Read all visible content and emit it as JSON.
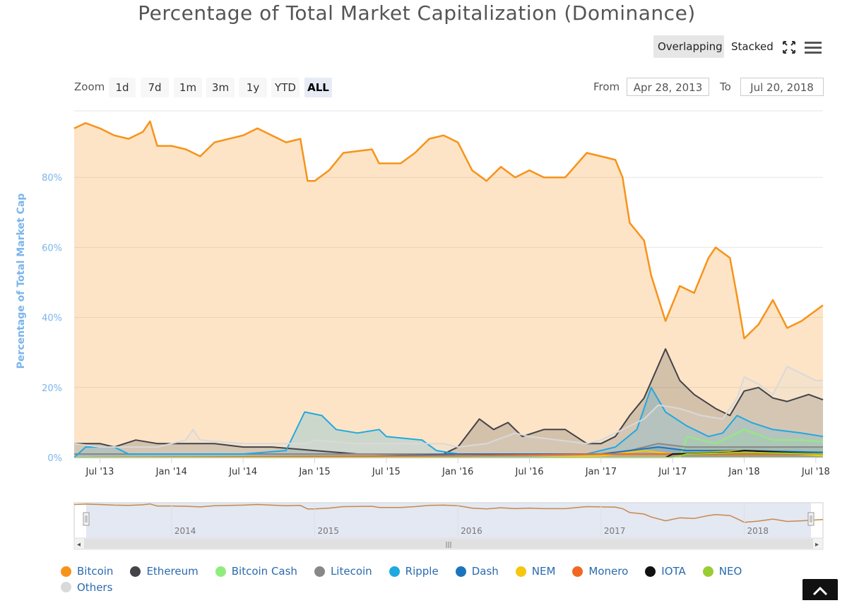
{
  "title": "Percentage of Total Market Capitalization (Dominance)",
  "modes": {
    "overlapping": "Overlapping",
    "stacked": "Stacked"
  },
  "zoom": {
    "label": "Zoom",
    "buttons": [
      "1d",
      "7d",
      "1m",
      "3m",
      "1y",
      "YTD",
      "ALL"
    ],
    "active": "ALL"
  },
  "range": {
    "from_label": "From",
    "from_value": "Apr 28, 2013",
    "to_label": "To",
    "to_value": "Jul 20, 2018"
  },
  "icons": {
    "fullscreen": "fullscreen-icon",
    "menu": "hamburger-menu-icon",
    "back_to_top": "chevron-up-icon"
  },
  "chart_data": {
    "type": "area",
    "title": "Percentage of Total Market Capitalization (Dominance)",
    "ylabel": "Percentage of Total Market Cap",
    "xlabel": "",
    "ylim": [
      0,
      100
    ],
    "xlim": [
      2013.32,
      2018.55
    ],
    "y_ticks": [
      0,
      20,
      40,
      60,
      80
    ],
    "y_tick_labels": [
      "0%",
      "20%",
      "40%",
      "60%",
      "80%"
    ],
    "x_ticks": [
      2013.5,
      2014.0,
      2014.5,
      2015.0,
      2015.5,
      2016.0,
      2016.5,
      2017.0,
      2017.5,
      2018.0,
      2018.5
    ],
    "x_tick_labels": [
      "Jul '13",
      "Jan '14",
      "Jul '14",
      "Jan '15",
      "Jul '15",
      "Jan '16",
      "Jul '16",
      "Jan '17",
      "Jul '17",
      "Jan '18",
      "Jul '18"
    ],
    "navigator_labels": [
      {
        "x": 2014.0,
        "label": "2014"
      },
      {
        "x": 2015.0,
        "label": "2015"
      },
      {
        "x": 2016.0,
        "label": "2016"
      },
      {
        "x": 2017.0,
        "label": "2017"
      },
      {
        "x": 2018.0,
        "label": "2018"
      }
    ],
    "series": [
      {
        "name": "Bitcoin",
        "color": "#f7931a",
        "points": [
          [
            2013.32,
            94
          ],
          [
            2013.4,
            95.5
          ],
          [
            2013.5,
            94
          ],
          [
            2013.6,
            92
          ],
          [
            2013.7,
            91
          ],
          [
            2013.8,
            93
          ],
          [
            2013.85,
            96
          ],
          [
            2013.9,
            89
          ],
          [
            2014.0,
            89
          ],
          [
            2014.1,
            88
          ],
          [
            2014.2,
            86
          ],
          [
            2014.3,
            90
          ],
          [
            2014.5,
            92
          ],
          [
            2014.6,
            94
          ],
          [
            2014.7,
            92
          ],
          [
            2014.8,
            90
          ],
          [
            2014.9,
            91
          ],
          [
            2014.95,
            79
          ],
          [
            2015.0,
            79
          ],
          [
            2015.1,
            82
          ],
          [
            2015.2,
            87
          ],
          [
            2015.4,
            88
          ],
          [
            2015.45,
            84
          ],
          [
            2015.6,
            84
          ],
          [
            2015.7,
            87
          ],
          [
            2015.8,
            91
          ],
          [
            2015.9,
            92
          ],
          [
            2016.0,
            90
          ],
          [
            2016.1,
            82
          ],
          [
            2016.2,
            79
          ],
          [
            2016.3,
            83
          ],
          [
            2016.4,
            80
          ],
          [
            2016.5,
            82
          ],
          [
            2016.6,
            80
          ],
          [
            2016.75,
            80
          ],
          [
            2016.9,
            87
          ],
          [
            2017.0,
            86
          ],
          [
            2017.1,
            85
          ],
          [
            2017.15,
            80
          ],
          [
            2017.2,
            67
          ],
          [
            2017.3,
            62
          ],
          [
            2017.35,
            52
          ],
          [
            2017.45,
            39
          ],
          [
            2017.55,
            49
          ],
          [
            2017.65,
            47
          ],
          [
            2017.75,
            57
          ],
          [
            2017.8,
            60
          ],
          [
            2017.9,
            57
          ],
          [
            2017.95,
            46
          ],
          [
            2018.0,
            34
          ],
          [
            2018.1,
            38
          ],
          [
            2018.2,
            45
          ],
          [
            2018.3,
            37
          ],
          [
            2018.4,
            39
          ],
          [
            2018.5,
            42
          ],
          [
            2018.55,
            43.5
          ]
        ]
      },
      {
        "name": "Ethereum",
        "color": "#434348",
        "points": [
          [
            2013.32,
            4
          ],
          [
            2013.5,
            4
          ],
          [
            2013.6,
            3
          ],
          [
            2013.75,
            5
          ],
          [
            2013.9,
            4
          ],
          [
            2014.1,
            4
          ],
          [
            2014.3,
            4
          ],
          [
            2014.5,
            3
          ],
          [
            2014.7,
            3
          ],
          [
            2015.0,
            2
          ],
          [
            2015.3,
            1
          ],
          [
            2015.6,
            1
          ],
          [
            2015.9,
            1
          ],
          [
            2016.0,
            3
          ],
          [
            2016.15,
            11
          ],
          [
            2016.25,
            8
          ],
          [
            2016.35,
            10
          ],
          [
            2016.45,
            6
          ],
          [
            2016.6,
            8
          ],
          [
            2016.75,
            8
          ],
          [
            2016.9,
            4
          ],
          [
            2017.0,
            4
          ],
          [
            2017.1,
            6
          ],
          [
            2017.2,
            12
          ],
          [
            2017.3,
            17
          ],
          [
            2017.45,
            31
          ],
          [
            2017.55,
            22
          ],
          [
            2017.65,
            18
          ],
          [
            2017.8,
            14
          ],
          [
            2017.9,
            12
          ],
          [
            2018.0,
            19
          ],
          [
            2018.1,
            20
          ],
          [
            2018.2,
            17
          ],
          [
            2018.3,
            16
          ],
          [
            2018.45,
            18
          ],
          [
            2018.55,
            16.5
          ]
        ]
      },
      {
        "name": "Bitcoin Cash",
        "color": "#90ed7d",
        "points": [
          [
            2017.55,
            0
          ],
          [
            2017.6,
            6
          ],
          [
            2017.7,
            5
          ],
          [
            2017.8,
            4
          ],
          [
            2017.9,
            6
          ],
          [
            2018.0,
            8
          ],
          [
            2018.2,
            5
          ],
          [
            2018.4,
            5
          ],
          [
            2018.55,
            4.5
          ]
        ]
      },
      {
        "name": "Litecoin",
        "color": "#888888",
        "points": [
          [
            2013.32,
            1
          ],
          [
            2014.0,
            1
          ],
          [
            2015.0,
            1
          ],
          [
            2016.0,
            1
          ],
          [
            2016.5,
            1
          ],
          [
            2017.0,
            1
          ],
          [
            2017.2,
            2
          ],
          [
            2017.4,
            4
          ],
          [
            2017.6,
            3
          ],
          [
            2017.8,
            3
          ],
          [
            2018.0,
            3
          ],
          [
            2018.2,
            3
          ],
          [
            2018.55,
            3
          ]
        ]
      },
      {
        "name": "Ripple",
        "color": "#1fa9e1",
        "points": [
          [
            2013.32,
            0
          ],
          [
            2013.4,
            3
          ],
          [
            2013.6,
            3
          ],
          [
            2013.7,
            1
          ],
          [
            2014.0,
            1
          ],
          [
            2014.5,
            1
          ],
          [
            2014.8,
            2
          ],
          [
            2014.93,
            13
          ],
          [
            2015.05,
            12
          ],
          [
            2015.15,
            8
          ],
          [
            2015.3,
            7
          ],
          [
            2015.45,
            8
          ],
          [
            2015.5,
            6
          ],
          [
            2015.75,
            5
          ],
          [
            2015.85,
            2
          ],
          [
            2016.0,
            1
          ],
          [
            2016.5,
            1
          ],
          [
            2016.9,
            1
          ],
          [
            2017.1,
            3
          ],
          [
            2017.25,
            8
          ],
          [
            2017.35,
            20
          ],
          [
            2017.45,
            13
          ],
          [
            2017.6,
            9
          ],
          [
            2017.75,
            6
          ],
          [
            2017.85,
            7
          ],
          [
            2017.95,
            12
          ],
          [
            2018.05,
            10
          ],
          [
            2018.2,
            8
          ],
          [
            2018.4,
            7
          ],
          [
            2018.55,
            6
          ]
        ]
      },
      {
        "name": "Dash",
        "color": "#1c75bc",
        "points": [
          [
            2013.32,
            0
          ],
          [
            2015.0,
            0
          ],
          [
            2016.0,
            1
          ],
          [
            2016.5,
            1
          ],
          [
            2017.0,
            1
          ],
          [
            2017.2,
            2
          ],
          [
            2017.4,
            3
          ],
          [
            2017.6,
            2
          ],
          [
            2018.0,
            2
          ],
          [
            2018.55,
            1.5
          ]
        ]
      },
      {
        "name": "NEM",
        "color": "#f5c710",
        "points": [
          [
            2013.32,
            0
          ],
          [
            2016.5,
            0
          ],
          [
            2017.0,
            0.5
          ],
          [
            2017.3,
            2
          ],
          [
            2017.5,
            1
          ],
          [
            2018.0,
            2
          ],
          [
            2018.55,
            0.5
          ]
        ]
      },
      {
        "name": "Monero",
        "color": "#f26822",
        "points": [
          [
            2013.32,
            0
          ],
          [
            2016.0,
            0.5
          ],
          [
            2017.0,
            1
          ],
          [
            2017.5,
            1
          ],
          [
            2018.0,
            1
          ],
          [
            2018.55,
            1
          ]
        ]
      },
      {
        "name": "IOTA",
        "color": "#111111",
        "points": [
          [
            2013.32,
            0
          ],
          [
            2017.45,
            0
          ],
          [
            2017.5,
            1
          ],
          [
            2017.9,
            1.5
          ],
          [
            2018.0,
            2
          ],
          [
            2018.55,
            1
          ]
        ]
      },
      {
        "name": "NEO",
        "color": "#9acd32",
        "points": [
          [
            2013.32,
            0
          ],
          [
            2017.5,
            0
          ],
          [
            2017.6,
            1
          ],
          [
            2018.0,
            1.5
          ],
          [
            2018.55,
            1
          ]
        ]
      },
      {
        "name": "Others",
        "color": "#d9d9d9",
        "points": [
          [
            2013.32,
            4
          ],
          [
            2013.5,
            3
          ],
          [
            2013.7,
            3
          ],
          [
            2013.9,
            3
          ],
          [
            2014.1,
            5
          ],
          [
            2014.15,
            8
          ],
          [
            2014.2,
            5
          ],
          [
            2014.5,
            4
          ],
          [
            2014.75,
            4
          ],
          [
            2014.95,
            4
          ],
          [
            2015.0,
            5
          ],
          [
            2015.3,
            4
          ],
          [
            2015.6,
            4
          ],
          [
            2015.9,
            4
          ],
          [
            2016.0,
            3
          ],
          [
            2016.2,
            4
          ],
          [
            2016.4,
            7
          ],
          [
            2016.5,
            6
          ],
          [
            2016.7,
            5
          ],
          [
            2016.9,
            4
          ],
          [
            2017.0,
            5
          ],
          [
            2017.2,
            9
          ],
          [
            2017.3,
            11
          ],
          [
            2017.4,
            15
          ],
          [
            2017.55,
            14
          ],
          [
            2017.7,
            12
          ],
          [
            2017.85,
            11
          ],
          [
            2017.95,
            17
          ],
          [
            2018.0,
            23
          ],
          [
            2018.1,
            21
          ],
          [
            2018.2,
            18
          ],
          [
            2018.3,
            26
          ],
          [
            2018.4,
            24
          ],
          [
            2018.5,
            22
          ],
          [
            2018.55,
            22
          ]
        ]
      }
    ]
  }
}
